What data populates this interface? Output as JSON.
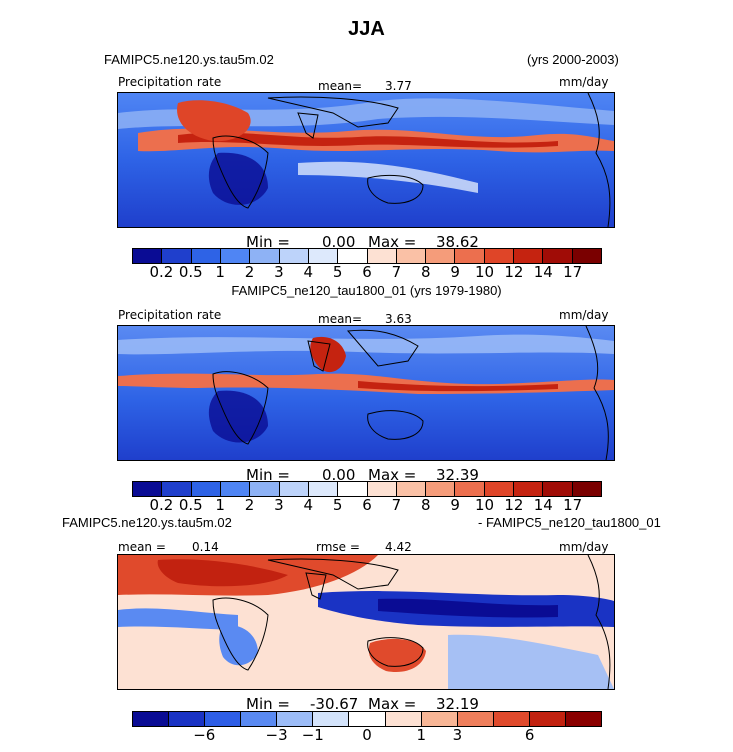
{
  "figure": {
    "title": "JJA",
    "top_case": "FAMIPC5.ne120.ys.tau5m.02",
    "top_years": "(yrs 2000-2003)",
    "mid_caption": "FAMIPC5_ne120_tau1800_01 (yrs 1979-1980)",
    "diff_case_left": "FAMIPC5.ne120.ys.tau5m.02",
    "diff_case_right": "- FAMIPC5_ne120_tau1800_01"
  },
  "chart_data": [
    {
      "type": "heatmap",
      "panel": "top",
      "variable": "Precipitation rate",
      "units": "mm/day",
      "mean_label": "mean=",
      "mean": "3.77",
      "min_label": "Min =",
      "min": "0.00",
      "max_label": "Max =",
      "max": "38.62",
      "colorbar_levels": [
        "0.2",
        "0.5",
        "1",
        "2",
        "3",
        "4",
        "5",
        "6",
        "7",
        "8",
        "9",
        "10",
        "12",
        "14",
        "17"
      ],
      "colors": [
        "#0a0c94",
        "#1f3fcc",
        "#2e63e6",
        "#4f85f4",
        "#8eb2f5",
        "#bdd3fa",
        "#dde9fc",
        "#ffffff",
        "#fde1d3",
        "#fac1a6",
        "#f59c7a",
        "#ec6f4e",
        "#df4528",
        "#c52310",
        "#a00c06",
        "#7a0000"
      ]
    },
    {
      "type": "heatmap",
      "panel": "middle",
      "variable": "Precipitation rate",
      "units": "mm/day",
      "mean_label": "mean=",
      "mean": "3.63",
      "min_label": "Min =",
      "min": "0.00",
      "max_label": "Max =",
      "max": "32.39",
      "colorbar_levels": [
        "0.2",
        "0.5",
        "1",
        "2",
        "3",
        "4",
        "5",
        "6",
        "7",
        "8",
        "9",
        "10",
        "12",
        "14",
        "17"
      ]
    },
    {
      "type": "heatmap",
      "panel": "difference",
      "units": "mm/day",
      "mean_label": "mean =",
      "mean": "0.14",
      "rmse_label": "rmse =",
      "rmse": "4.42",
      "min_label": "Min =",
      "min": "-30.67",
      "max_label": "Max =",
      "max": "32.19",
      "colorbar_levels": [
        "−6",
        "−3",
        "−1",
        "0",
        "1",
        "3",
        "6"
      ],
      "colors": [
        "#0a0c94",
        "#1a33c4",
        "#2e5ee6",
        "#5a8af2",
        "#9cbcf7",
        "#d3e3fb",
        "#ffffff",
        "#fde1d3",
        "#f8b696",
        "#ef7f5c",
        "#e04a2c",
        "#c22210",
        "#8a0000"
      ]
    }
  ]
}
